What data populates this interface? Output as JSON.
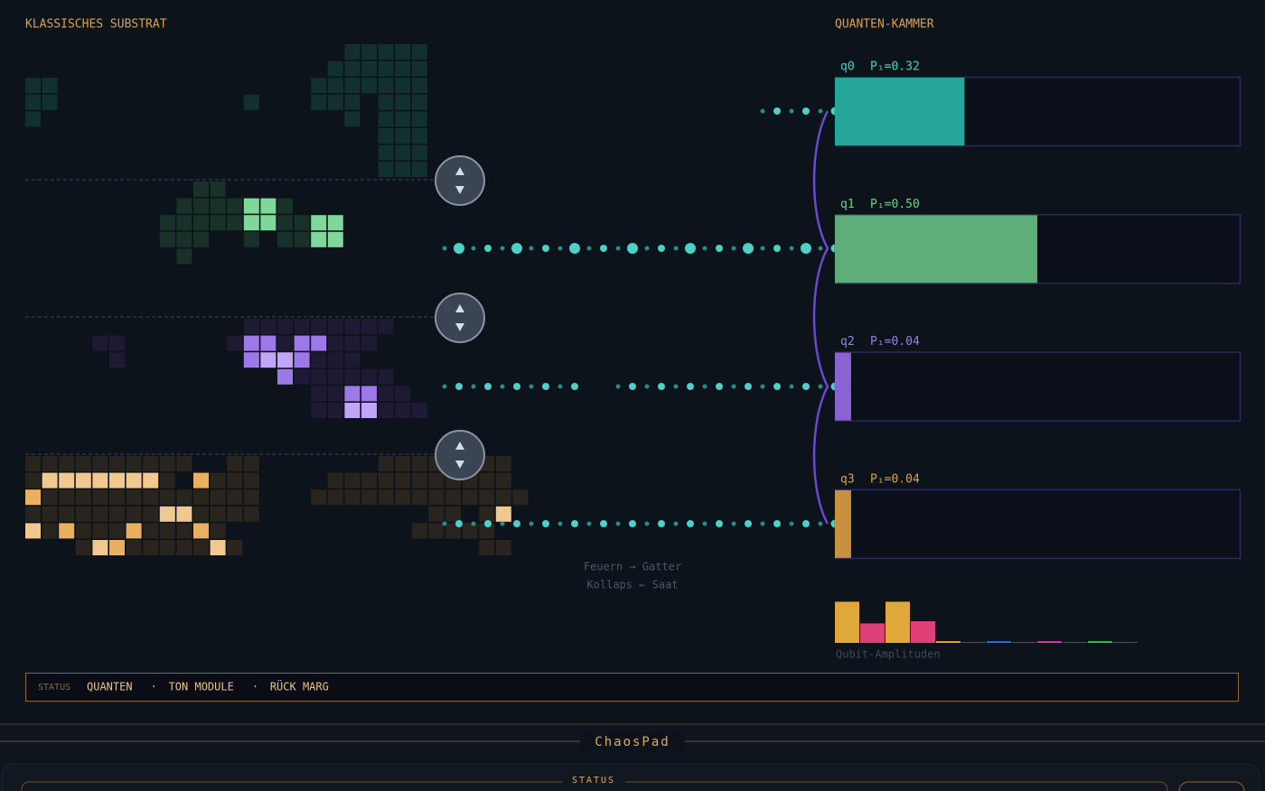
{
  "substrate": {
    "title": "KLASSISCHES SUBSTRAT"
  },
  "chamber": {
    "title": "QUANTEN-KAMMER",
    "qubits": [
      {
        "label": "q0",
        "prob_label": "P₁=0.32",
        "prob": 0.32,
        "color": "#26a69a",
        "text_color": "#4dd0c0"
      },
      {
        "label": "q1",
        "prob_label": "P₁=0.50",
        "prob": 0.5,
        "color": "#5fae7a",
        "text_color": "#6fd08a"
      },
      {
        "label": "q2",
        "prob_label": "P₁=0.04",
        "prob": 0.04,
        "color": "#8a63d2",
        "text_color": "#9b7fe0"
      },
      {
        "label": "q3",
        "prob_label": "P₁=0.04",
        "prob": 0.04,
        "color": "#c8903f",
        "text_color": "#e0a040"
      }
    ],
    "amplitudes": {
      "label": "Qubit-Amplituden",
      "values": [
        0.95,
        0.45,
        0.95,
        0.5,
        0.04,
        0.02,
        0.04,
        0.02,
        0.04,
        0.02,
        0.04,
        0.02
      ],
      "colors": [
        "#e0a83a",
        "#e0407a",
        "#e0a83a",
        "#e0407a",
        "#e0a83a",
        "#556",
        "#3a6ad8",
        "#556",
        "#d040a0",
        "#556",
        "#30c050",
        "#556"
      ]
    }
  },
  "legend": {
    "fire": "Feuern → Gatter",
    "collapse": "Kollaps ← Saat"
  },
  "status_bar": {
    "label": "STATUS",
    "items": [
      "QUANTEN",
      "TON MODULE",
      "RÜCK MARG"
    ],
    "separator": "·"
  },
  "footer": {
    "title": "ChaosPad",
    "status": "STATUS"
  }
}
